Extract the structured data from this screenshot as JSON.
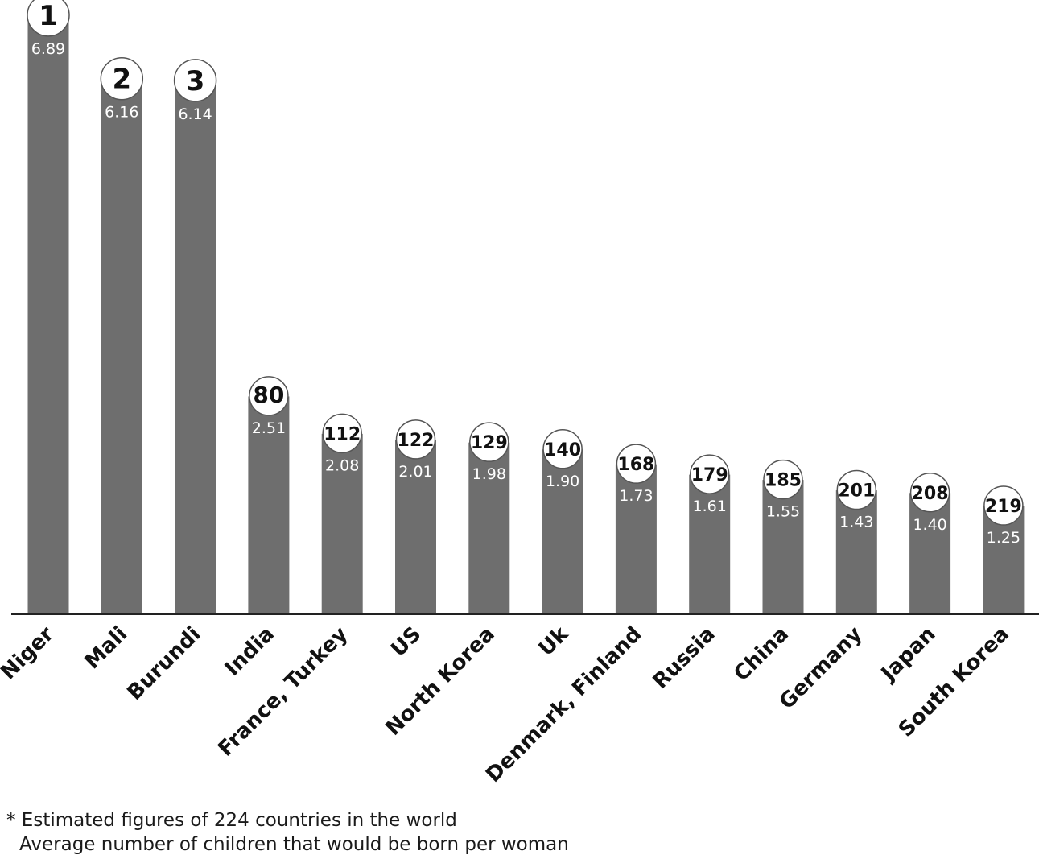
{
  "chart_data": {
    "type": "bar",
    "categories": [
      "Niger",
      "Mali",
      "Burundi",
      "India",
      "France, Turkey",
      "US",
      "North Korea",
      "Uk",
      "Denmark, Finland",
      "Russia",
      "China",
      "Germany",
      "Japan",
      "South Korea"
    ],
    "values": [
      6.89,
      6.16,
      6.14,
      2.51,
      2.08,
      2.01,
      1.98,
      1.9,
      1.73,
      1.61,
      1.55,
      1.43,
      1.4,
      1.25
    ],
    "value_labels": [
      "6.89",
      "6.16",
      "6.14",
      "2.51",
      "2.08",
      "2.01",
      "1.98",
      "1.90",
      "1.73",
      "1.61",
      "1.55",
      "1.43",
      "1.40",
      "1.25"
    ],
    "ranks": [
      "1",
      "2",
      "3",
      "80",
      "112",
      "122",
      "129",
      "140",
      "168",
      "179",
      "185",
      "201",
      "208",
      "219"
    ],
    "ylim": [
      0,
      7.5
    ],
    "bar_color": "#6e6e6e",
    "grid": false,
    "legend": "none"
  },
  "footnote": {
    "line1": "* Estimated figures of 224 countries in the world",
    "line2": "Average number of children that would be born per woman"
  }
}
